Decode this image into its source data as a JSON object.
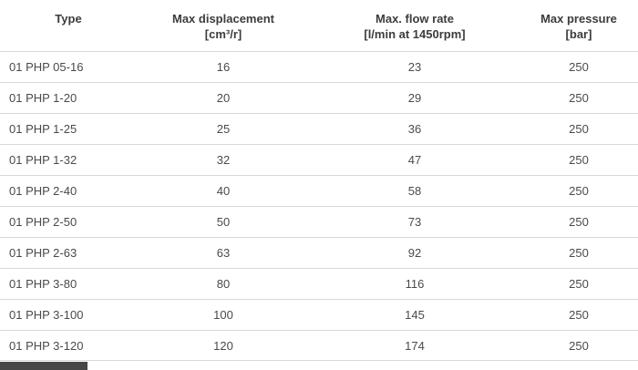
{
  "table": {
    "columns": [
      {
        "line1": "Type",
        "line2": ""
      },
      {
        "line1": "Max displacement",
        "line2": "[cm³/r]"
      },
      {
        "line1": "Max. flow rate",
        "line2": "[l/min at 1450rpm]"
      },
      {
        "line1": "Max pressure",
        "line2": "[bar]"
      }
    ],
    "rows": [
      {
        "type": "01 PHP 05-16",
        "displacement": "16",
        "flow": "23",
        "pressure": "250"
      },
      {
        "type": "01 PHP 1-20",
        "displacement": "20",
        "flow": "29",
        "pressure": "250"
      },
      {
        "type": "01 PHP 1-25",
        "displacement": "25",
        "flow": "36",
        "pressure": "250"
      },
      {
        "type": "01 PHP 1-32",
        "displacement": "32",
        "flow": "47",
        "pressure": "250"
      },
      {
        "type": "01 PHP 2-40",
        "displacement": "40",
        "flow": "58",
        "pressure": "250"
      },
      {
        "type": "01 PHP 2-50",
        "displacement": "50",
        "flow": "73",
        "pressure": "250"
      },
      {
        "type": "01 PHP 2-63",
        "displacement": "63",
        "flow": "92",
        "pressure": "250"
      },
      {
        "type": "01 PHP 3-80",
        "displacement": "80",
        "flow": "116",
        "pressure": "250"
      },
      {
        "type": "01 PHP 3-100",
        "displacement": "100",
        "flow": "145",
        "pressure": "250"
      },
      {
        "type": "01 PHP 3-120",
        "displacement": "120",
        "flow": "174",
        "pressure": "250"
      }
    ]
  },
  "colors": {
    "text": "#3c3c3c",
    "row_line": "#d8d8d8",
    "bottom_bar": "#474747"
  }
}
